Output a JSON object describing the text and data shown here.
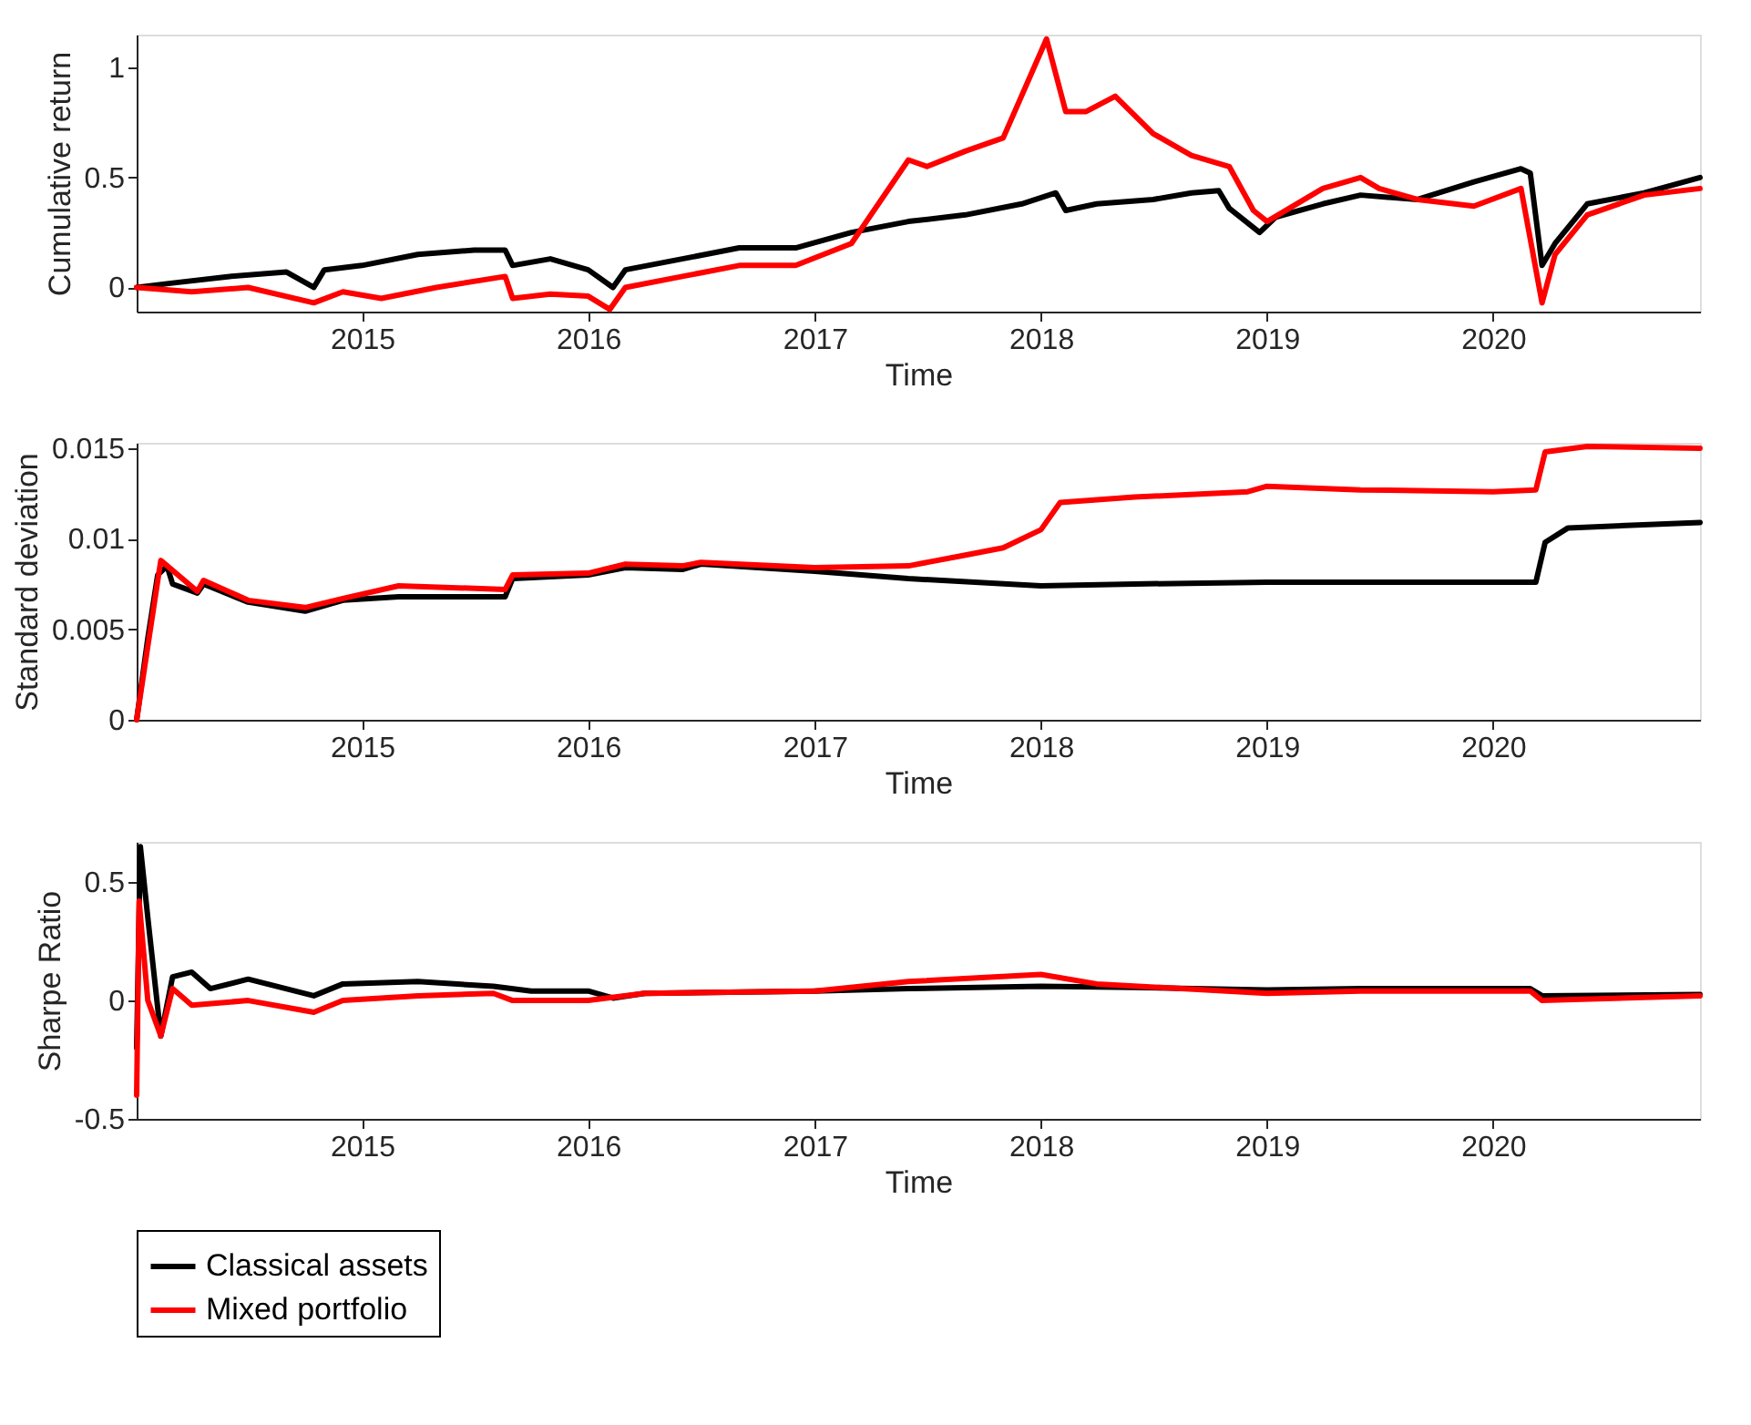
{
  "chart_data": [
    {
      "type": "line",
      "xlabel": "Time",
      "ylabel": "Cumulative return",
      "xlim": [
        "2014-01-02",
        "2020-11-30"
      ],
      "xticks": [
        "2015",
        "2016",
        "2017",
        "2018",
        "2019",
        "2020"
      ],
      "ylim": [
        -0.11,
        1.15
      ],
      "yticks": [
        0,
        0.5,
        1
      ],
      "series": [
        {
          "color": "#000000",
          "x": [
            "2014-01-02",
            "2014-03-01",
            "2014-06-01",
            "2014-09-01",
            "2014-10-15",
            "2014-11-01",
            "2015-01-01",
            "2015-04-01",
            "2015-07-01",
            "2015-08-20",
            "2015-09-01",
            "2015-11-01",
            "2016-01-01",
            "2016-02-10",
            "2016-03-01",
            "2016-06-01",
            "2016-09-01",
            "2016-12-01",
            "2017-03-01",
            "2017-06-01",
            "2017-09-01",
            "2017-12-01",
            "2018-01-25",
            "2018-02-10",
            "2018-04-01",
            "2018-07-01",
            "2018-09-01",
            "2018-10-15",
            "2018-11-01",
            "2018-12-20",
            "2019-01-15",
            "2019-04-01",
            "2019-06-01",
            "2019-09-01",
            "2019-12-01",
            "2020-02-15",
            "2020-03-01",
            "2020-03-20",
            "2020-04-10",
            "2020-06-01",
            "2020-09-01",
            "2020-11-30"
          ],
          "values": [
            0,
            0.02,
            0.05,
            0.07,
            0.0,
            0.08,
            0.1,
            0.15,
            0.17,
            0.17,
            0.1,
            0.13,
            0.08,
            0.0,
            0.08,
            0.13,
            0.18,
            0.18,
            0.25,
            0.3,
            0.33,
            0.38,
            0.43,
            0.35,
            0.38,
            0.4,
            0.43,
            0.44,
            0.36,
            0.25,
            0.32,
            0.38,
            0.42,
            0.4,
            0.48,
            0.54,
            0.52,
            0.1,
            0.2,
            0.38,
            0.43,
            0.5
          ]
        },
        {
          "color": "#ff0000",
          "x": [
            "2014-01-02",
            "2014-04-01",
            "2014-07-01",
            "2014-10-15",
            "2014-12-01",
            "2015-02-01",
            "2015-05-01",
            "2015-08-20",
            "2015-09-01",
            "2015-11-01",
            "2016-01-01",
            "2016-02-05",
            "2016-03-01",
            "2016-06-01",
            "2016-09-01",
            "2016-12-01",
            "2017-03-01",
            "2017-06-01",
            "2017-07-01",
            "2017-09-01",
            "2017-11-01",
            "2018-01-10",
            "2018-02-10",
            "2018-03-15",
            "2018-05-01",
            "2018-07-01",
            "2018-09-01",
            "2018-11-01",
            "2018-12-10",
            "2019-01-01",
            "2019-04-01",
            "2019-06-01",
            "2019-07-01",
            "2019-09-01",
            "2019-12-01",
            "2020-02-15",
            "2020-03-20",
            "2020-04-10",
            "2020-06-01",
            "2020-09-01",
            "2020-11-30"
          ],
          "values": [
            0,
            -0.02,
            0.0,
            -0.07,
            -0.02,
            -0.05,
            0.0,
            0.05,
            -0.05,
            -0.03,
            -0.04,
            -0.1,
            0.0,
            0.05,
            0.1,
            0.1,
            0.2,
            0.58,
            0.55,
            0.62,
            0.68,
            1.13,
            0.8,
            0.8,
            0.87,
            0.7,
            0.6,
            0.55,
            0.35,
            0.3,
            0.45,
            0.5,
            0.45,
            0.4,
            0.37,
            0.45,
            -0.07,
            0.15,
            0.33,
            0.42,
            0.45
          ]
        }
      ]
    },
    {
      "type": "line",
      "xlabel": "Time",
      "ylabel": "Standard deviation",
      "xlim": [
        "2014-01-02",
        "2020-11-30"
      ],
      "xticks": [
        "2015",
        "2016",
        "2017",
        "2018",
        "2019",
        "2020"
      ],
      "ylim": [
        0,
        0.0153
      ],
      "yticks": [
        0,
        0.005,
        0.01,
        0.015
      ],
      "series": [
        {
          "color": "#000000",
          "x": [
            "2014-01-02",
            "2014-01-20",
            "2014-02-05",
            "2014-02-20",
            "2014-03-01",
            "2014-04-10",
            "2014-04-20",
            "2014-07-01",
            "2014-10-01",
            "2014-12-01",
            "2015-03-01",
            "2015-08-20",
            "2015-09-01",
            "2016-01-01",
            "2016-03-01",
            "2016-06-01",
            "2016-07-01",
            "2017-01-01",
            "2017-06-01",
            "2018-01-01",
            "2018-06-01",
            "2019-01-01",
            "2019-06-01",
            "2020-01-01",
            "2020-03-10",
            "2020-03-25",
            "2020-05-01",
            "2020-11-30"
          ],
          "values": [
            0,
            0.0045,
            0.008,
            0.0085,
            0.0075,
            0.007,
            0.0075,
            0.0065,
            0.006,
            0.0066,
            0.0068,
            0.0068,
            0.0078,
            0.008,
            0.0084,
            0.0083,
            0.0086,
            0.0082,
            0.0078,
            0.0074,
            0.0075,
            0.0076,
            0.0076,
            0.0076,
            0.0076,
            0.0098,
            0.0106,
            0.0109
          ]
        },
        {
          "color": "#ff0000",
          "x": [
            "2014-01-02",
            "2014-02-10",
            "2014-04-10",
            "2014-04-20",
            "2014-07-01",
            "2014-10-01",
            "2014-12-01",
            "2015-03-01",
            "2015-08-20",
            "2015-09-01",
            "2016-01-01",
            "2016-03-01",
            "2016-06-01",
            "2016-07-01",
            "2017-01-01",
            "2017-06-01",
            "2017-09-01",
            "2017-11-01",
            "2018-01-01",
            "2018-02-01",
            "2018-06-01",
            "2018-12-01",
            "2019-01-01",
            "2019-06-01",
            "2020-01-01",
            "2020-03-10",
            "2020-03-25",
            "2020-06-01",
            "2020-11-30"
          ],
          "values": [
            0,
            0.0088,
            0.0071,
            0.0077,
            0.0066,
            0.0062,
            0.0067,
            0.0074,
            0.0072,
            0.008,
            0.0081,
            0.0086,
            0.0085,
            0.0087,
            0.0084,
            0.0085,
            0.0091,
            0.0095,
            0.0105,
            0.012,
            0.0123,
            0.0126,
            0.0129,
            0.0127,
            0.0126,
            0.0127,
            0.0148,
            0.0151,
            0.015
          ]
        }
      ]
    },
    {
      "type": "line",
      "xlabel": "Time",
      "ylabel": "Sharpe Ratio",
      "xlim": [
        "2014-01-02",
        "2020-11-30"
      ],
      "xticks": [
        "2015",
        "2016",
        "2017",
        "2018",
        "2019",
        "2020"
      ],
      "ylim": [
        -0.5,
        0.67
      ],
      "yticks": [
        -0.5,
        0,
        0.5
      ],
      "legend": "bottom left",
      "series": [
        {
          "name": "Classical assets",
          "color": "#000000",
          "x": [
            "2014-01-02",
            "2014-01-08",
            "2014-01-20",
            "2014-02-10",
            "2014-03-01",
            "2014-04-01",
            "2014-05-01",
            "2014-07-01",
            "2014-10-15",
            "2014-12-01",
            "2015-04-01",
            "2015-08-01",
            "2015-10-01",
            "2016-01-01",
            "2016-02-10",
            "2016-04-01",
            "2017-01-01",
            "2017-06-01",
            "2018-01-01",
            "2018-06-01",
            "2019-01-01",
            "2019-06-01",
            "2020-03-01",
            "2020-03-20",
            "2020-11-30"
          ],
          "values": [
            -0.2,
            0.65,
            0.35,
            -0.15,
            0.1,
            0.12,
            0.05,
            0.09,
            0.02,
            0.07,
            0.08,
            0.06,
            0.04,
            0.04,
            0.01,
            0.03,
            0.04,
            0.05,
            0.06,
            0.055,
            0.045,
            0.05,
            0.05,
            0.02,
            0.025
          ]
        },
        {
          "name": "Mixed portfolio",
          "color": "#ff0000",
          "x": [
            "2014-01-02",
            "2014-01-06",
            "2014-01-20",
            "2014-02-10",
            "2014-03-01",
            "2014-04-01",
            "2014-07-01",
            "2014-10-15",
            "2014-12-01",
            "2015-04-01",
            "2015-08-01",
            "2015-09-01",
            "2016-01-01",
            "2016-04-01",
            "2017-01-01",
            "2017-06-01",
            "2018-01-01",
            "2018-04-01",
            "2019-01-01",
            "2019-06-01",
            "2020-03-01",
            "2020-03-20",
            "2020-11-30"
          ],
          "values": [
            -0.4,
            0.42,
            0.0,
            -0.15,
            0.05,
            -0.02,
            0.0,
            -0.05,
            0.0,
            0.02,
            0.03,
            0.0,
            0.0,
            0.03,
            0.04,
            0.08,
            0.11,
            0.07,
            0.03,
            0.04,
            0.04,
            0.0,
            0.02
          ]
        }
      ]
    }
  ]
}
